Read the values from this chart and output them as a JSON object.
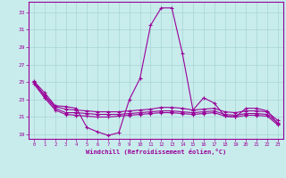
{
  "xlabel": "Windchill (Refroidissement éolien,°C)",
  "bg_color": "#c8ecec",
  "grid_color": "#a8d4d4",
  "line_color": "#990099",
  "x_ticks": [
    0,
    1,
    2,
    3,
    4,
    5,
    6,
    7,
    8,
    9,
    10,
    11,
    12,
    13,
    14,
    15,
    16,
    17,
    18,
    19,
    20,
    21,
    22,
    23
  ],
  "ylim": [
    18.5,
    34.2
  ],
  "yticks": [
    19,
    21,
    23,
    25,
    27,
    29,
    31,
    33
  ],
  "line1": [
    25.1,
    23.8,
    22.3,
    22.2,
    22.0,
    19.8,
    19.3,
    18.9,
    19.2,
    23.0,
    25.4,
    31.5,
    33.5,
    33.5,
    28.3,
    21.8,
    23.2,
    22.6,
    21.1,
    21.0,
    22.0,
    22.0,
    21.7,
    20.2
  ],
  "line2": [
    25.0,
    23.5,
    22.2,
    21.9,
    21.8,
    21.7,
    21.6,
    21.6,
    21.6,
    21.7,
    21.8,
    21.9,
    22.1,
    22.1,
    22.0,
    21.8,
    21.9,
    22.0,
    21.6,
    21.5,
    21.7,
    21.7,
    21.6,
    20.6
  ],
  "line3": [
    25.0,
    23.4,
    22.0,
    21.5,
    21.5,
    21.4,
    21.3,
    21.3,
    21.3,
    21.4,
    21.5,
    21.6,
    21.7,
    21.7,
    21.6,
    21.5,
    21.6,
    21.7,
    21.3,
    21.2,
    21.4,
    21.4,
    21.3,
    20.3
  ],
  "line4": [
    24.8,
    23.2,
    21.8,
    21.3,
    21.2,
    21.1,
    21.0,
    21.0,
    21.1,
    21.2,
    21.3,
    21.4,
    21.5,
    21.5,
    21.4,
    21.3,
    21.4,
    21.5,
    21.1,
    21.0,
    21.2,
    21.2,
    21.1,
    20.1
  ]
}
